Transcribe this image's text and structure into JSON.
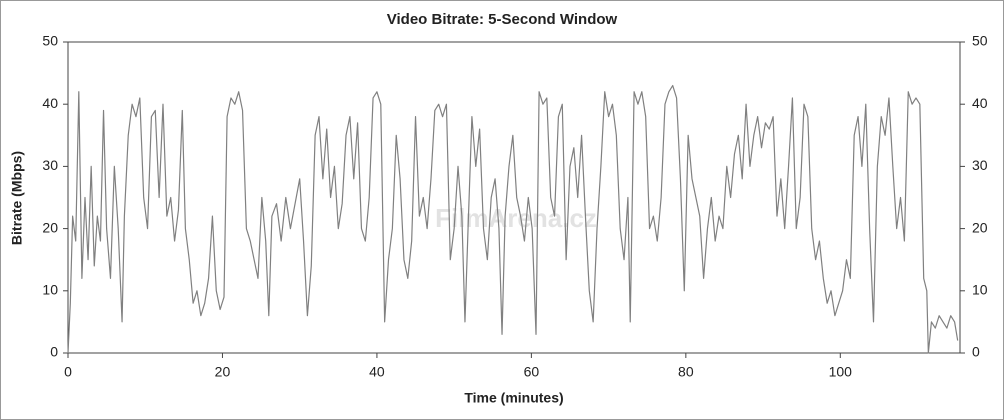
{
  "chart_data": {
    "type": "line",
    "title": "Video Bitrate: 5-Second Window",
    "x_label": "Time (minutes)",
    "y_label": "Bitrate (Mbps)",
    "watermark": "FilmArena.cz",
    "color": "#808080",
    "xlim": [
      0,
      115.5
    ],
    "xticks": [
      0,
      20,
      40,
      60,
      80,
      100
    ],
    "ylim": [
      0,
      50
    ],
    "yticks": [
      0,
      10,
      20,
      30,
      40,
      50
    ],
    "y2lim": [
      0,
      50
    ],
    "y2ticks": [
      0,
      10,
      20,
      30,
      40,
      50
    ],
    "x": [
      0,
      0.3,
      0.6,
      1,
      1.4,
      1.8,
      2.2,
      2.6,
      3,
      3.4,
      3.8,
      4.2,
      4.6,
      5,
      5.5,
      6,
      6.5,
      7,
      7.3,
      7.8,
      8.3,
      8.8,
      9.3,
      9.8,
      10.3,
      10.8,
      11.3,
      11.8,
      12.3,
      12.8,
      13.3,
      13.8,
      14.3,
      14.8,
      15.2,
      15.7,
      16.2,
      16.7,
      17.2,
      17.7,
      18.2,
      18.7,
      19.2,
      19.7,
      20.2,
      20.6,
      21.1,
      21.6,
      22.1,
      22.6,
      23.1,
      23.6,
      24.1,
      24.6,
      25.1,
      25.6,
      26,
      26.4,
      27,
      27.6,
      28.2,
      28.8,
      29.4,
      30,
      30.5,
      31,
      31.5,
      32,
      32.5,
      33,
      33.5,
      34,
      34.5,
      35,
      35.5,
      36,
      36.5,
      37,
      37.5,
      38,
      38.5,
      39,
      39.5,
      40,
      40.5,
      41,
      41.5,
      42,
      42.5,
      43,
      43.5,
      44,
      44.5,
      45,
      45.5,
      46,
      46.5,
      47,
      47.5,
      48,
      48.5,
      49,
      49.5,
      50,
      50.5,
      51,
      51.4,
      51.8,
      52.3,
      52.8,
      53.3,
      53.8,
      54.3,
      54.8,
      55.3,
      55.8,
      56.2,
      56.6,
      57.1,
      57.6,
      58.1,
      58.6,
      59.1,
      59.6,
      60.1,
      60.6,
      61,
      61.5,
      62,
      62.5,
      63,
      63.5,
      64,
      64.5,
      65,
      65.5,
      66,
      66.5,
      67,
      67.5,
      68,
      68.5,
      69,
      69.5,
      70,
      70.5,
      71,
      71.5,
      72,
      72.5,
      72.8,
      73.3,
      73.8,
      74.3,
      74.8,
      75.3,
      75.8,
      76.3,
      76.8,
      77.3,
      77.8,
      78.3,
      78.8,
      79.3,
      79.8,
      80.3,
      80.8,
      81.3,
      81.8,
      82.3,
      82.8,
      83.3,
      83.8,
      84.3,
      84.8,
      85.3,
      85.8,
      86.3,
      86.8,
      87.3,
      87.8,
      88.3,
      88.8,
      89.3,
      89.8,
      90.3,
      90.8,
      91.3,
      91.8,
      92.3,
      92.8,
      93.3,
      93.8,
      94.3,
      94.8,
      95.3,
      95.8,
      96.3,
      96.8,
      97.3,
      97.8,
      98.3,
      98.8,
      99.3,
      99.8,
      100.3,
      100.8,
      101.3,
      101.8,
      102.3,
      102.8,
      103.3,
      103.8,
      104.3,
      104.8,
      105.3,
      105.8,
      106.3,
      106.8,
      107.3,
      107.8,
      108.3,
      108.8,
      109.3,
      109.8,
      110.3,
      110.8,
      111.2,
      111.4,
      111.8,
      112.3,
      112.8,
      113.3,
      113.8,
      114.3,
      114.8,
      115.2
    ],
    "values": [
      0,
      8,
      22,
      18,
      42,
      12,
      25,
      15,
      30,
      14,
      22,
      18,
      39,
      20,
      12,
      30,
      20,
      5,
      22,
      35,
      40,
      38,
      41,
      25,
      20,
      38,
      39,
      25,
      40,
      22,
      25,
      18,
      23,
      39,
      20,
      15,
      8,
      10,
      6,
      8,
      12,
      22,
      10,
      7,
      9,
      38,
      41,
      40,
      42,
      39,
      20,
      18,
      15,
      12,
      25,
      18,
      6,
      22,
      24,
      18,
      25,
      20,
      24,
      28,
      18,
      6,
      14,
      35,
      38,
      28,
      36,
      25,
      30,
      20,
      24,
      35,
      38,
      28,
      37,
      20,
      18,
      25,
      41,
      42,
      40,
      5,
      15,
      20,
      35,
      28,
      15,
      12,
      18,
      38,
      22,
      25,
      20,
      28,
      39,
      40,
      38,
      40,
      15,
      20,
      30,
      22,
      5,
      20,
      38,
      30,
      36,
      20,
      15,
      25,
      28,
      20,
      3,
      22,
      30,
      35,
      25,
      22,
      18,
      25,
      20,
      3,
      42,
      40,
      41,
      25,
      22,
      38,
      40,
      15,
      30,
      33,
      25,
      35,
      22,
      10,
      5,
      20,
      30,
      42,
      38,
      40,
      35,
      20,
      15,
      25,
      5,
      42,
      40,
      42,
      38,
      20,
      22,
      18,
      25,
      40,
      42,
      43,
      41,
      28,
      10,
      35,
      28,
      25,
      22,
      12,
      20,
      25,
      18,
      22,
      20,
      30,
      25,
      32,
      35,
      28,
      40,
      30,
      35,
      38,
      33,
      37,
      36,
      38,
      22,
      28,
      20,
      30,
      41,
      20,
      25,
      40,
      38,
      20,
      15,
      18,
      12,
      8,
      10,
      6,
      8,
      10,
      15,
      12,
      35,
      38,
      30,
      40,
      20,
      5,
      30,
      38,
      35,
      41,
      30,
      20,
      25,
      18,
      42,
      40,
      41,
      40,
      12,
      10,
      0,
      5,
      4,
      6,
      5,
      4,
      6,
      5,
      2
    ]
  }
}
